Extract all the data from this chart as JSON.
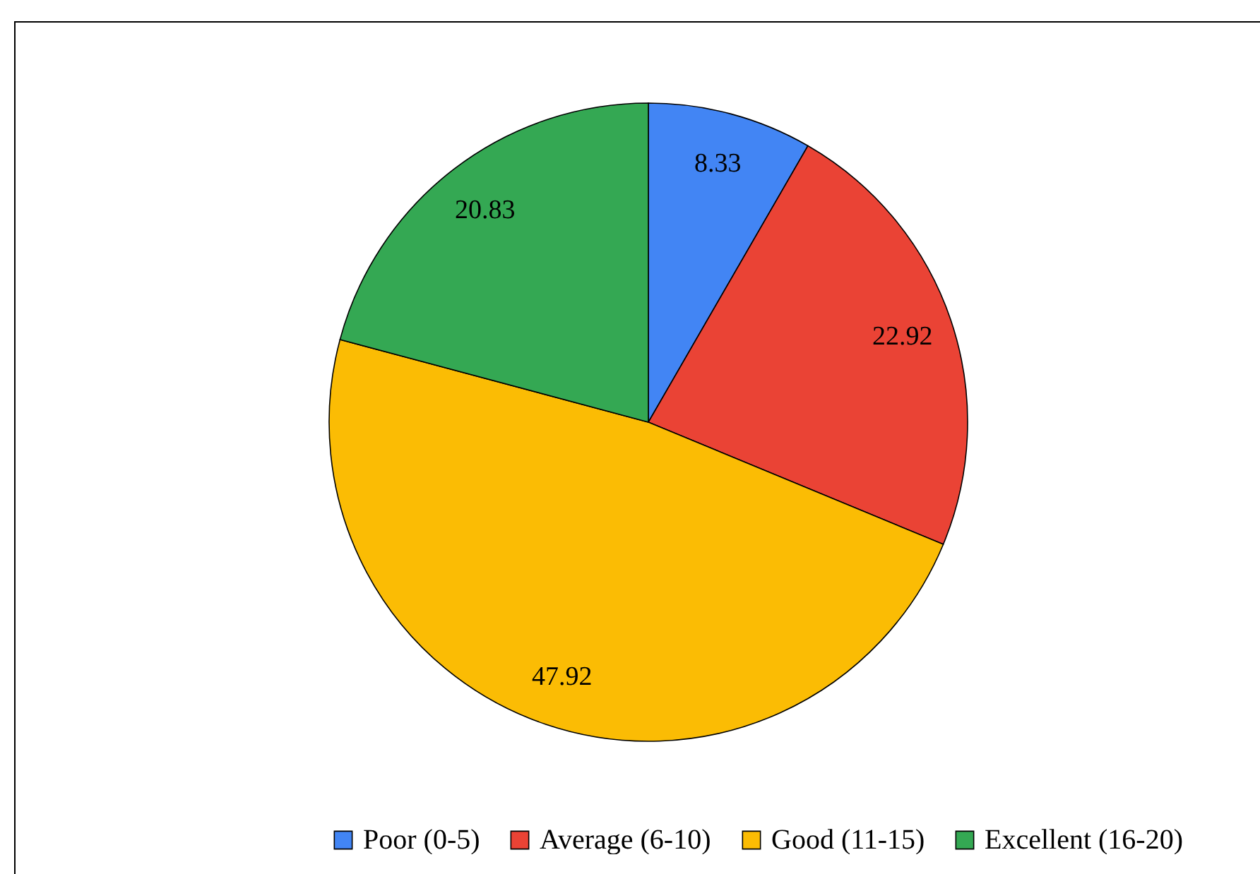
{
  "chart_data": {
    "type": "pie",
    "categories": [
      "Poor (0-5)",
      "Average (6-10)",
      "Good (11-15)",
      "Excellent (16-20)"
    ],
    "values": [
      8.33,
      22.92,
      47.92,
      20.83
    ],
    "colors": [
      "#4285f4",
      "#ea4335",
      "#fbbc04",
      "#34a853"
    ],
    "data_labels": true,
    "legend": "bottom"
  }
}
